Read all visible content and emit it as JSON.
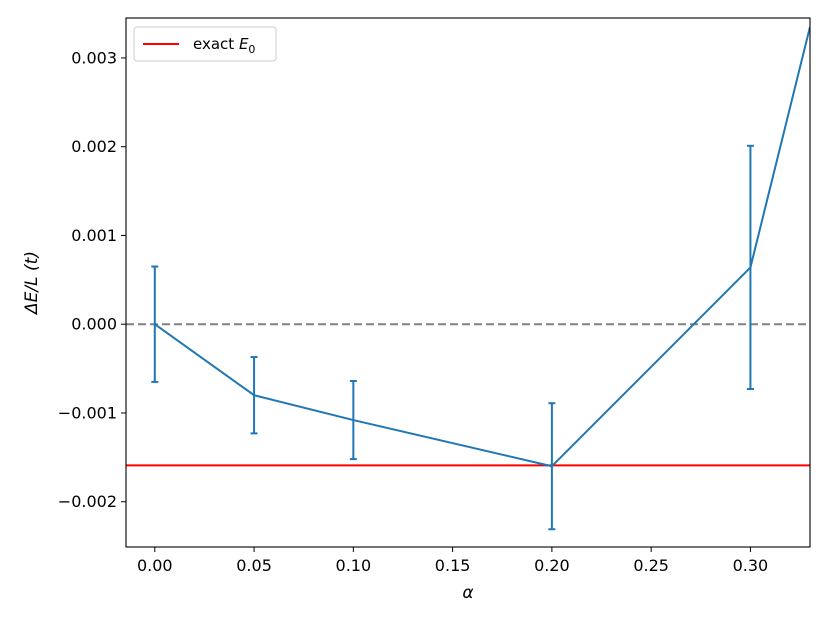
{
  "chart_data": {
    "type": "line",
    "title": "",
    "xlabel": "α",
    "ylabel": "ΔE/L (t)",
    "xlim": [
      -0.0145,
      0.33
    ],
    "ylim": [
      -0.00251,
      0.00345
    ],
    "x_ticks": [
      {
        "value": 0.0,
        "label": "0.00"
      },
      {
        "value": 0.05,
        "label": "0.05"
      },
      {
        "value": 0.1,
        "label": "0.10"
      },
      {
        "value": 0.15,
        "label": "0.15"
      },
      {
        "value": 0.2,
        "label": "0.20"
      },
      {
        "value": 0.25,
        "label": "0.25"
      },
      {
        "value": 0.3,
        "label": "0.30"
      }
    ],
    "y_ticks": [
      {
        "value": -0.002,
        "label": "−0.002"
      },
      {
        "value": -0.001,
        "label": "−0.001"
      },
      {
        "value": 0.0,
        "label": "0.000"
      },
      {
        "value": 0.001,
        "label": "0.001"
      },
      {
        "value": 0.002,
        "label": "0.002"
      },
      {
        "value": 0.003,
        "label": "0.003"
      }
    ],
    "series": [
      {
        "name": "",
        "color": "#1f77b4",
        "points": [
          {
            "x": 0.0,
            "y": 0.0,
            "err": 0.00065
          },
          {
            "x": 0.05,
            "y": -0.0008,
            "err": 0.00043
          },
          {
            "x": 0.1,
            "y": -0.00108,
            "err": 0.00044
          },
          {
            "x": 0.2,
            "y": -0.0016,
            "err": 0.00071
          },
          {
            "x": 0.3,
            "y": 0.00064,
            "err": 0.00137
          },
          {
            "x": 0.33,
            "y": 0.00335,
            "err": null
          }
        ]
      }
    ],
    "reference_lines": [
      {
        "name": "zero",
        "y": 0.0,
        "color": "#808080",
        "style": "dashed"
      },
      {
        "name": "exact E0",
        "y": -0.00159,
        "color": "#ff0000",
        "style": "solid"
      }
    ],
    "legend": {
      "placement": "top-left",
      "entries": [
        {
          "text": "exact ",
          "math_symbol": "E",
          "math_subscript": "0",
          "color": "#ff0000"
        }
      ]
    },
    "grid": false
  }
}
